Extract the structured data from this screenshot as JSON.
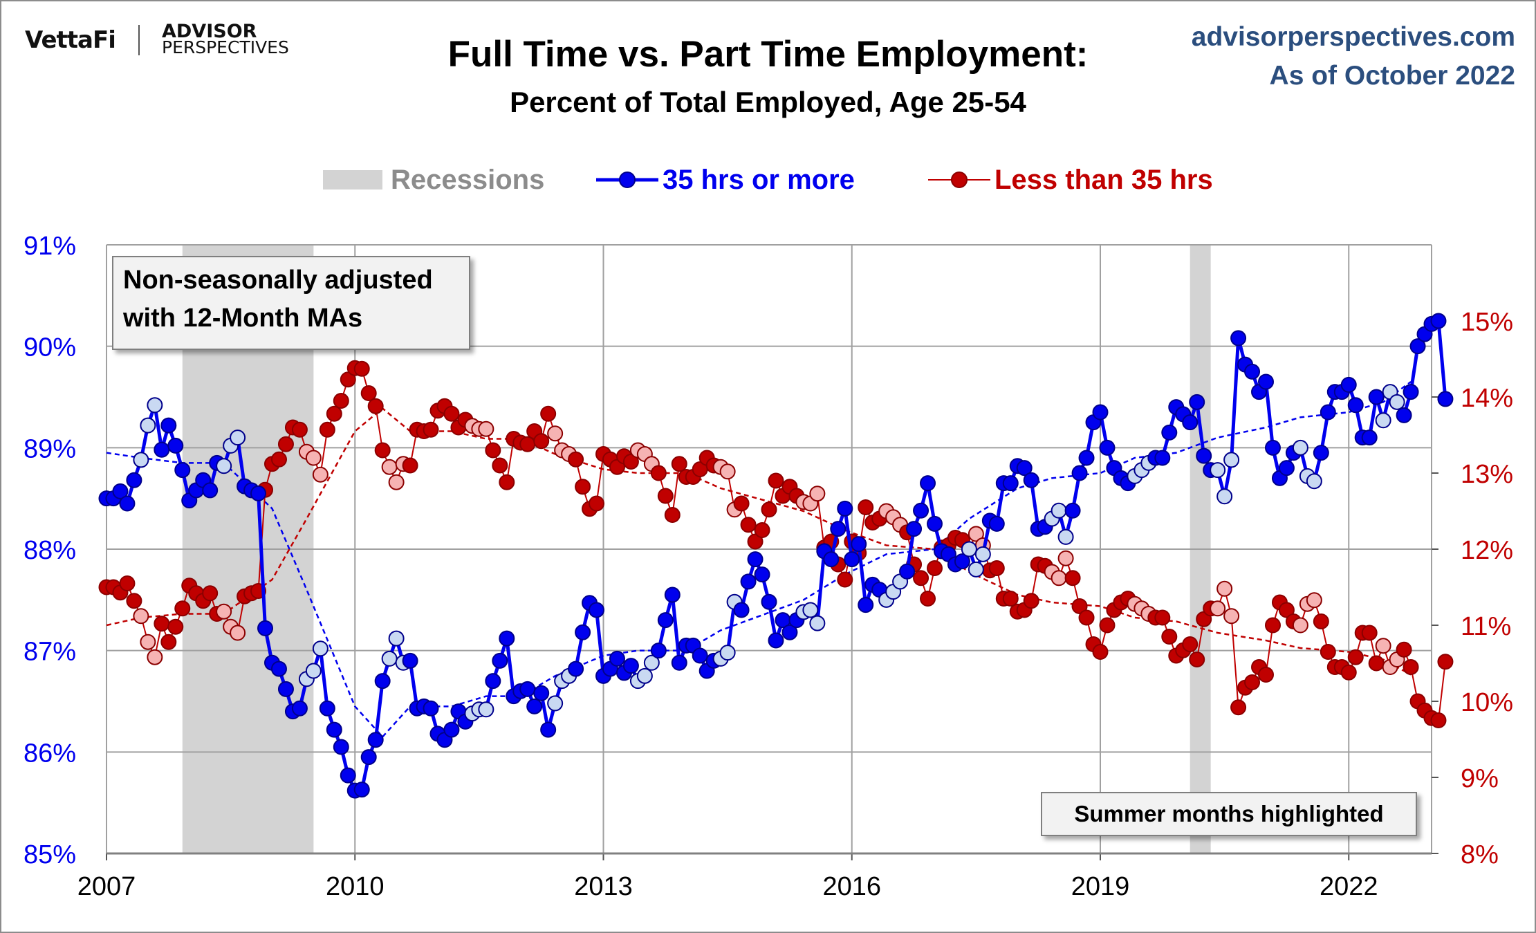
{
  "branding": {
    "vettafi": "VettaFi",
    "advisor_line1": "ADVISOR",
    "advisor_line2": "PERSPECTIVES"
  },
  "header": {
    "site": "advisorperspectives.com",
    "as_of": "As of October 2022"
  },
  "notes": {
    "adjustment": [
      "Non-seasonally adjusted",
      "with 12-Month MAs"
    ],
    "summer": "Summer months highlighted"
  },
  "colors": {
    "full_time": "#0000ee",
    "full_time_summer": "#c9d9f2",
    "part_time": "#c00000",
    "part_time_summer": "#f6b3b3",
    "recession": "#d3d3d3",
    "grid": "#a0a0a0",
    "brand_blue": "#2b4e7e"
  },
  "chart_data": {
    "type": "line",
    "title": "Full Time vs. Part Time Employment:",
    "subtitle": "Percent of Total Employed, Age 25-54",
    "legend": [
      "Recessions",
      "35 hrs or more",
      "Less than 35 hrs"
    ],
    "legend_position": "top-center",
    "grid": true,
    "x_range": [
      "2007-01",
      "2022-12"
    ],
    "x_ticks": [
      "2007",
      "2010",
      "2013",
      "2016",
      "2019",
      "2022"
    ],
    "y_left": {
      "range": [
        85,
        91
      ],
      "ticks": [
        "85%",
        "86%",
        "87%",
        "88%",
        "89%",
        "90%",
        "91%"
      ]
    },
    "y_right": {
      "range": [
        8,
        16
      ],
      "ticks": [
        "8%",
        "9%",
        "10%",
        "11%",
        "12%",
        "13%",
        "14%",
        "15%"
      ]
    },
    "recessions": [
      [
        "2007-12",
        "2009-06"
      ],
      [
        "2020-02",
        "2020-04"
      ]
    ],
    "summer_months": [
      "Jun",
      "Jul",
      "Aug"
    ],
    "series": [
      {
        "name": "35 hrs or more",
        "axis": "left",
        "start": "2007-01",
        "frequency": "monthly",
        "values": [
          88.5,
          88.5,
          88.57,
          88.45,
          88.68,
          88.88,
          89.22,
          89.42,
          88.98,
          89.22,
          89.02,
          88.78,
          88.48,
          88.58,
          88.68,
          88.58,
          88.85,
          88.82,
          89.02,
          89.1,
          88.62,
          88.58,
          88.55,
          87.22,
          86.88,
          86.82,
          86.62,
          86.4,
          86.43,
          86.72,
          86.8,
          87.02,
          86.43,
          86.22,
          86.05,
          85.77,
          85.62,
          85.63,
          85.95,
          86.12,
          86.7,
          86.92,
          87.12,
          86.88,
          86.9,
          86.43,
          86.45,
          86.43,
          86.18,
          86.12,
          86.22,
          86.4,
          86.3,
          86.38,
          86.42,
          86.42,
          86.7,
          86.9,
          87.12,
          86.55,
          86.6,
          86.62,
          86.45,
          86.58,
          86.22,
          86.48,
          86.7,
          86.75,
          86.82,
          87.18,
          87.47,
          87.4,
          86.75,
          86.82,
          86.92,
          86.78,
          86.85,
          86.7,
          86.75,
          86.88,
          87.0,
          87.3,
          87.55,
          86.88,
          87.05,
          87.05,
          86.95,
          86.8,
          86.9,
          86.92,
          86.98,
          87.48,
          87.4,
          87.68,
          87.9,
          87.75,
          87.48,
          87.1,
          87.3,
          87.18,
          87.3,
          87.38,
          87.4,
          87.27,
          87.98,
          87.9,
          88.2,
          88.4,
          87.9,
          88.05,
          87.45,
          87.65,
          87.6,
          87.5,
          87.58,
          87.68,
          87.78,
          88.2,
          88.38,
          88.65,
          88.25,
          87.98,
          87.95,
          87.85,
          87.88,
          88.0,
          87.8,
          87.95,
          88.28,
          88.25,
          88.65,
          88.65,
          88.82,
          88.8,
          88.68,
          88.2,
          88.22,
          88.3,
          88.38,
          88.12,
          88.38,
          88.75,
          88.9,
          89.25,
          89.35,
          89.0,
          88.8,
          88.7,
          88.65,
          88.72,
          88.78,
          88.85,
          88.9,
          88.9,
          89.15,
          89.4,
          89.33,
          89.25,
          89.45,
          88.92,
          88.78,
          88.78,
          88.52,
          88.88,
          90.08,
          89.82,
          89.75,
          89.55,
          89.65,
          89.0,
          88.7,
          88.8,
          88.95,
          89.0,
          88.72,
          88.67,
          88.95,
          89.35,
          89.55,
          89.55,
          89.62,
          89.42,
          89.1,
          89.1,
          89.5,
          89.27,
          89.55,
          89.45,
          89.32,
          89.55,
          90.0,
          90.12,
          90.22,
          90.25,
          89.48
        ]
      },
      {
        "name": "Less than 35 hrs",
        "axis": "right",
        "start": "2007-01",
        "frequency": "monthly",
        "values": [
          11.5,
          11.5,
          11.43,
          11.55,
          11.32,
          11.12,
          10.78,
          10.58,
          11.02,
          10.78,
          10.98,
          11.22,
          11.52,
          11.42,
          11.32,
          11.42,
          11.15,
          11.18,
          10.98,
          10.9,
          11.38,
          11.42,
          11.45,
          12.78,
          13.12,
          13.18,
          13.38,
          13.6,
          13.57,
          13.28,
          13.2,
          12.98,
          13.57,
          13.78,
          13.95,
          14.23,
          14.38,
          14.37,
          14.05,
          13.88,
          13.3,
          13.08,
          12.88,
          13.12,
          13.1,
          13.57,
          13.55,
          13.57,
          13.82,
          13.88,
          13.78,
          13.6,
          13.7,
          13.62,
          13.58,
          13.58,
          13.3,
          13.1,
          12.88,
          13.45,
          13.4,
          13.38,
          13.55,
          13.42,
          13.78,
          13.52,
          13.3,
          13.25,
          13.18,
          12.82,
          12.53,
          12.6,
          13.25,
          13.18,
          13.08,
          13.22,
          13.15,
          13.3,
          13.25,
          13.12,
          13.0,
          12.7,
          12.45,
          13.12,
          12.95,
          12.95,
          13.05,
          13.2,
          13.1,
          13.08,
          13.02,
          12.52,
          12.6,
          12.32,
          12.1,
          12.25,
          12.52,
          12.9,
          12.7,
          12.82,
          12.7,
          12.62,
          12.6,
          12.73,
          12.02,
          12.1,
          11.8,
          11.6,
          12.1,
          11.95,
          12.55,
          12.35,
          12.4,
          12.5,
          12.42,
          12.32,
          12.22,
          11.8,
          11.62,
          11.35,
          11.75,
          12.02,
          12.05,
          12.15,
          12.12,
          12.0,
          12.2,
          12.05,
          11.72,
          11.75,
          11.35,
          11.35,
          11.18,
          11.2,
          11.32,
          11.8,
          11.78,
          11.7,
          11.62,
          11.88,
          11.62,
          11.25,
          11.1,
          10.75,
          10.65,
          11.0,
          11.2,
          11.3,
          11.35,
          11.28,
          11.22,
          11.15,
          11.1,
          11.1,
          10.85,
          10.6,
          10.67,
          10.75,
          10.55,
          11.08,
          11.22,
          11.22,
          11.48,
          11.12,
          9.92,
          10.18,
          10.25,
          10.45,
          10.35,
          11.0,
          11.3,
          11.2,
          11.05,
          11.0,
          11.28,
          11.33,
          11.05,
          10.65,
          10.45,
          10.45,
          10.38,
          10.58,
          10.9,
          10.9,
          10.5,
          10.73,
          10.45,
          10.55,
          10.68,
          10.45,
          10.0,
          9.88,
          9.78,
          9.75,
          10.52
        ]
      },
      {
        "name": "35 hrs or more 12-month MA",
        "axis": "left",
        "anchors": [
          [
            "2007-01",
            88.95
          ],
          [
            "2007-06",
            88.9
          ],
          [
            "2007-12",
            88.85
          ],
          [
            "2008-06",
            88.85
          ],
          [
            "2009-01",
            88.4
          ],
          [
            "2009-06",
            87.6
          ],
          [
            "2010-01",
            86.45
          ],
          [
            "2010-05",
            86.15
          ],
          [
            "2010-09",
            86.45
          ],
          [
            "2011-03",
            86.45
          ],
          [
            "2011-08",
            86.55
          ],
          [
            "2012-01",
            86.55
          ],
          [
            "2012-06",
            86.75
          ],
          [
            "2013-01",
            86.95
          ],
          [
            "2013-06",
            87.0
          ],
          [
            "2014-01",
            87.0
          ],
          [
            "2014-06",
            87.2
          ],
          [
            "2014-12",
            87.35
          ],
          [
            "2015-06",
            87.5
          ],
          [
            "2015-12",
            87.75
          ],
          [
            "2016-06",
            87.95
          ],
          [
            "2017-01",
            88.0
          ],
          [
            "2017-06",
            88.3
          ],
          [
            "2018-01",
            88.6
          ],
          [
            "2018-06",
            88.7
          ],
          [
            "2019-01",
            88.75
          ],
          [
            "2019-06",
            88.9
          ],
          [
            "2019-12",
            88.95
          ],
          [
            "2020-06",
            89.1
          ],
          [
            "2021-01",
            89.2
          ],
          [
            "2021-06",
            89.3
          ],
          [
            "2022-01",
            89.35
          ],
          [
            "2022-06",
            89.45
          ],
          [
            "2022-10",
            89.65
          ]
        ]
      },
      {
        "name": "Less than 35 hrs 12-month MA",
        "axis": "right",
        "anchors": [
          [
            "2007-01",
            11.0
          ],
          [
            "2007-06",
            11.1
          ],
          [
            "2007-12",
            11.15
          ],
          [
            "2008-06",
            11.15
          ],
          [
            "2009-01",
            11.6
          ],
          [
            "2009-06",
            12.4
          ],
          [
            "2010-01",
            13.55
          ],
          [
            "2010-05",
            13.85
          ],
          [
            "2010-09",
            13.55
          ],
          [
            "2011-03",
            13.55
          ],
          [
            "2011-08",
            13.45
          ],
          [
            "2012-01",
            13.45
          ],
          [
            "2012-06",
            13.25
          ],
          [
            "2013-01",
            13.05
          ],
          [
            "2013-06",
            13.0
          ],
          [
            "2014-01",
            13.0
          ],
          [
            "2014-06",
            12.8
          ],
          [
            "2014-12",
            12.65
          ],
          [
            "2015-06",
            12.5
          ],
          [
            "2015-12",
            12.25
          ],
          [
            "2016-06",
            12.05
          ],
          [
            "2017-01",
            12.0
          ],
          [
            "2017-06",
            11.7
          ],
          [
            "2018-01",
            11.4
          ],
          [
            "2018-06",
            11.3
          ],
          [
            "2019-01",
            11.25
          ],
          [
            "2019-06",
            11.1
          ],
          [
            "2019-12",
            11.05
          ],
          [
            "2020-06",
            10.9
          ],
          [
            "2021-01",
            10.8
          ],
          [
            "2021-06",
            10.7
          ],
          [
            "2022-01",
            10.65
          ],
          [
            "2022-06",
            10.55
          ],
          [
            "2022-10",
            10.35
          ]
        ]
      }
    ]
  }
}
